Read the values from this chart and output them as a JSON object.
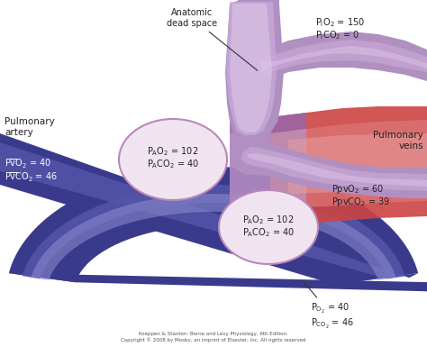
{
  "background_color": "#ffffff",
  "fig_width": 4.74,
  "fig_height": 3.85,
  "dpi": 100,
  "colors": {
    "artery_blue_outer": "#3a3a8c",
    "artery_blue_mid": "#5555aa",
    "artery_blue_inner": "#8888cc",
    "artery_blue_light": "#aaaadd",
    "airway_outer": "#b090c0",
    "airway_mid": "#c9a8d8",
    "airway_inner": "#ddc5e8",
    "airway_light": "#eeddee",
    "vein_red_dark": "#cc4444",
    "vein_red_mid": "#dd7777",
    "vein_red_light": "#e8a0a0",
    "mixed_purple": "#9966aa",
    "mixed_purple_light": "#bb99cc",
    "circle_fill": "#f0e4f0",
    "circle_edge": "#bb88bb",
    "text_dark": "#222222",
    "text_white": "#ffffff"
  },
  "labels": {
    "anatomic_dead_space": "Anatomic\ndead space",
    "pulmonary_artery": "Pulmonary\nartery",
    "pulmonary_veins": "Pulmonary\nveins",
    "copyright": "Koeppen & Stanton: Berne and Levy Physiology, 6th Edition.\nCopyright © 2008 by Mosby, an imprint of Elsevier, Inc. All rights reserved"
  }
}
